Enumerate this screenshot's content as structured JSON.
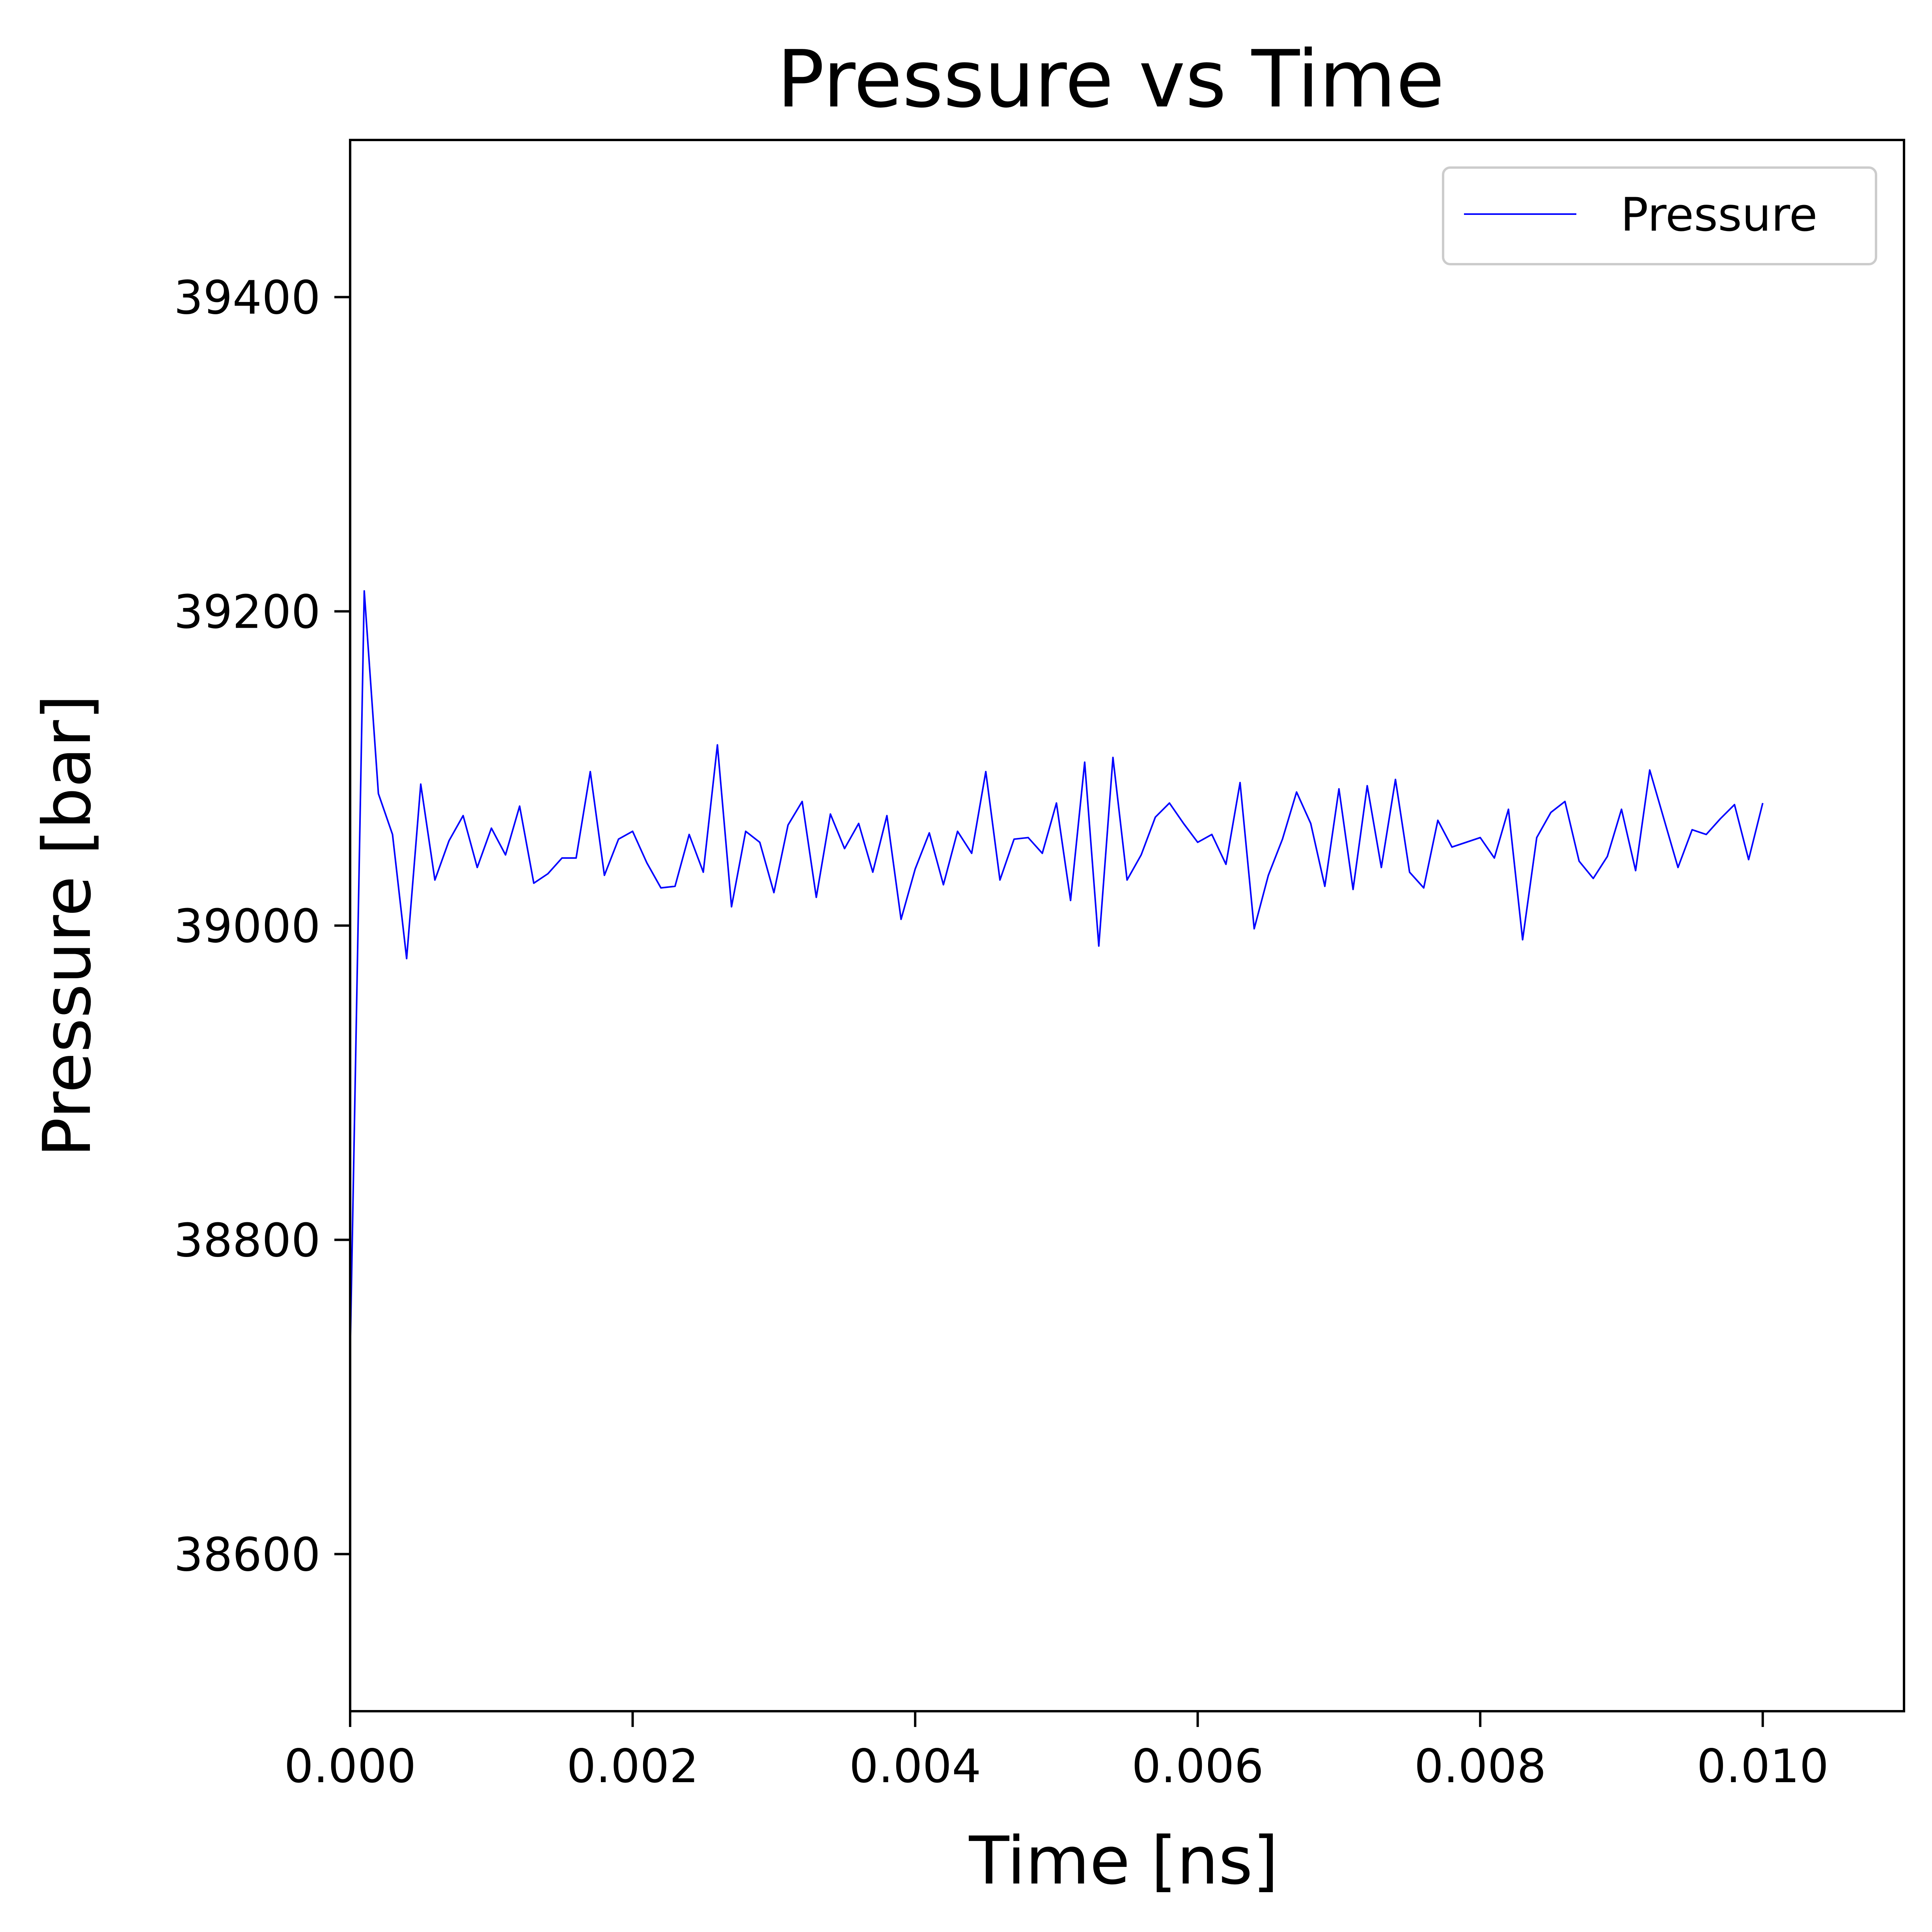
{
  "colors": {
    "series": "#0000ff",
    "axes": "#000000",
    "background": "#ffffff",
    "legend_border": "#cccccc"
  },
  "chart_data": {
    "type": "line",
    "title": "Pressure vs Time",
    "xlabel": "Time [ns]",
    "ylabel": "Pressure [bar]",
    "xlim": [
      0,
      0.011
    ],
    "ylim": [
      38500,
      39500
    ],
    "xticks": [
      0.0,
      0.002,
      0.004,
      0.006,
      0.008,
      0.01
    ],
    "xtick_labels": [
      "0.000",
      "0.002",
      "0.004",
      "0.006",
      "0.008",
      "0.010"
    ],
    "yticks": [
      38600,
      38800,
      39000,
      39200,
      39400
    ],
    "ytick_labels": [
      "38600",
      "38800",
      "39000",
      "39200",
      "39400"
    ],
    "grid": false,
    "legend": {
      "position": "top-right",
      "entries": [
        "Pressure"
      ]
    },
    "series": [
      {
        "name": "Pressure",
        "color": "#0000ff",
        "x": [
          0.0,
          0.0001,
          0.0002,
          0.0003,
          0.0004,
          0.0005,
          0.0006,
          0.0007,
          0.0008,
          0.0009,
          0.001,
          0.0011,
          0.0012,
          0.0013,
          0.0014,
          0.0015,
          0.0016,
          0.0017,
          0.0018,
          0.0019,
          0.002,
          0.0021,
          0.0022,
          0.0023,
          0.0024,
          0.0025,
          0.0026,
          0.0027,
          0.0028,
          0.0029,
          0.003,
          0.0031,
          0.0032,
          0.0033,
          0.0034,
          0.0035,
          0.0036,
          0.0037,
          0.0038,
          0.0039,
          0.004,
          0.0041,
          0.0042,
          0.0043,
          0.0044,
          0.0045,
          0.0046,
          0.0047,
          0.0048,
          0.0049,
          0.005,
          0.0051,
          0.0052,
          0.0053,
          0.0054,
          0.0055,
          0.0056,
          0.0057,
          0.0058,
          0.0059,
          0.006,
          0.0061,
          0.0062,
          0.0063,
          0.0064,
          0.0065,
          0.0066,
          0.0067,
          0.0068,
          0.0069,
          0.007,
          0.0071,
          0.0072,
          0.0073,
          0.0074,
          0.0075,
          0.0076,
          0.0077,
          0.0078,
          0.0079,
          0.008,
          0.0081,
          0.0082,
          0.0083,
          0.0084,
          0.0085,
          0.0086,
          0.0087,
          0.0088,
          0.0089,
          0.009,
          0.0091,
          0.0092,
          0.0093,
          0.0094,
          0.0095,
          0.0096,
          0.0097,
          0.0098,
          0.0099,
          0.01
        ],
        "y": [
          38725,
          39213,
          39084,
          39058,
          38979,
          39090,
          39029,
          39054,
          39070,
          39037,
          39062,
          39045,
          39076,
          39027,
          39033,
          39043,
          39043,
          39098,
          39032,
          39055,
          39060,
          39040,
          39024,
          39025,
          39058,
          39034,
          39115,
          39012,
          39060,
          39053,
          39021,
          39064,
          39079,
          39018,
          39071,
          39049,
          39065,
          39034,
          39070,
          39004,
          39036,
          39059,
          39026,
          39060,
          39046,
          39098,
          39029,
          39055,
          39056,
          39046,
          39078,
          39016,
          39104,
          38987,
          39107,
          39029,
          39045,
          39069,
          39078,
          39065,
          39053,
          39058,
          39039,
          39091,
          38998,
          39032,
          39055,
          39085,
          39065,
          39025,
          39087,
          39023,
          39089,
          39037,
          39093,
          39034,
          39024,
          39067,
          39050,
          39053,
          39056,
          39043,
          39074,
          38991,
          39056,
          39072,
          39079,
          39041,
          39030,
          39044,
          39074,
          39035,
          39099,
          39068,
          39037,
          39061,
          39058,
          39068,
          39077,
          39042,
          39078
        ]
      }
    ]
  }
}
